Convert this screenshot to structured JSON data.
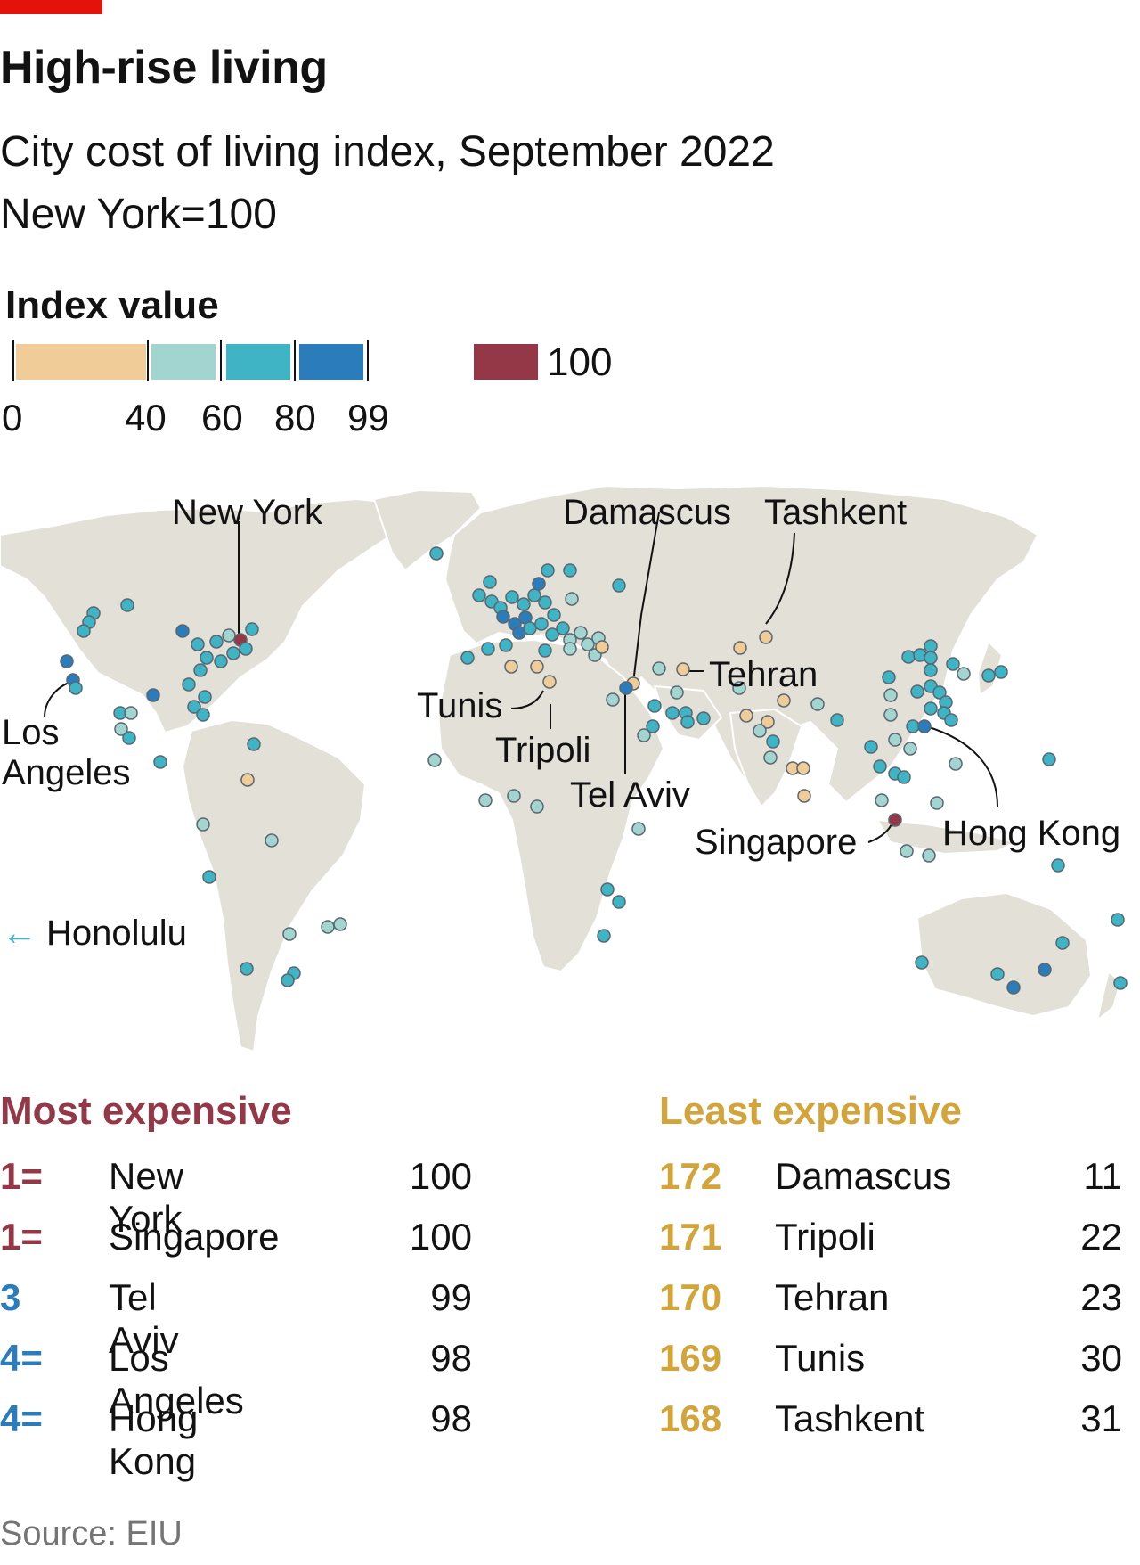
{
  "header": {
    "title": "High-rise living",
    "subtitle_line1": "City cost of living index, September 2022",
    "subtitle_line2": "New York=100"
  },
  "legend": {
    "title": "Index value",
    "ticks": [
      "0",
      "40",
      "60",
      "80",
      "99"
    ],
    "colors": [
      "#efcc98",
      "#a3d5d0",
      "#3eb4c4",
      "#2b7cba"
    ],
    "top_color": "#943848",
    "top_label": "100"
  },
  "map": {
    "labels": {
      "new_york": "New York",
      "los_angeles_1": "Los",
      "los_angeles_2": "Angeles",
      "honolulu": "Honolulu",
      "honolulu_arrow": "←",
      "damascus": "Damascus",
      "tashkent": "Tashkent",
      "tehran": "Tehran",
      "tunis": "Tunis",
      "tripoli": "Tripoli",
      "tel_aviv": "Tel Aviv",
      "singapore": "Singapore",
      "hong_kong": "Hong Kong"
    },
    "colors": {
      "land": "#e3e0d8",
      "border": "#ffffff",
      "leader": "#121212",
      "marker_stroke": "#5a6670"
    }
  },
  "rankings": {
    "most": {
      "heading": "Most expensive",
      "heading_color": "#943848",
      "rows": [
        {
          "rank": "1=",
          "city": "New York",
          "value": "100",
          "color": "#943848"
        },
        {
          "rank": "1=",
          "city": "Singapore",
          "value": "100",
          "color": "#943848"
        },
        {
          "rank": "3",
          "city": "Tel Aviv",
          "value": "99",
          "color": "#2b7cba"
        },
        {
          "rank": "4=",
          "city": "Los Angeles",
          "value": "98",
          "color": "#2b7cba"
        },
        {
          "rank": "4=",
          "city": "Hong Kong",
          "value": "98",
          "color": "#2b7cba"
        }
      ]
    },
    "least": {
      "heading": "Least expensive",
      "heading_color": "#d2a43a",
      "rows": [
        {
          "rank": "172",
          "city": "Damascus",
          "value": "11",
          "color": "#d2a43a"
        },
        {
          "rank": "171",
          "city": "Tripoli",
          "value": "22",
          "color": "#d2a43a"
        },
        {
          "rank": "170",
          "city": "Tehran",
          "value": "23",
          "color": "#d2a43a"
        },
        {
          "rank": "169",
          "city": "Tunis",
          "value": "30",
          "color": "#d2a43a"
        },
        {
          "rank": "168",
          "city": "Tashkent",
          "value": "31",
          "color": "#d2a43a"
        }
      ]
    }
  },
  "source": "Source: EIU"
}
